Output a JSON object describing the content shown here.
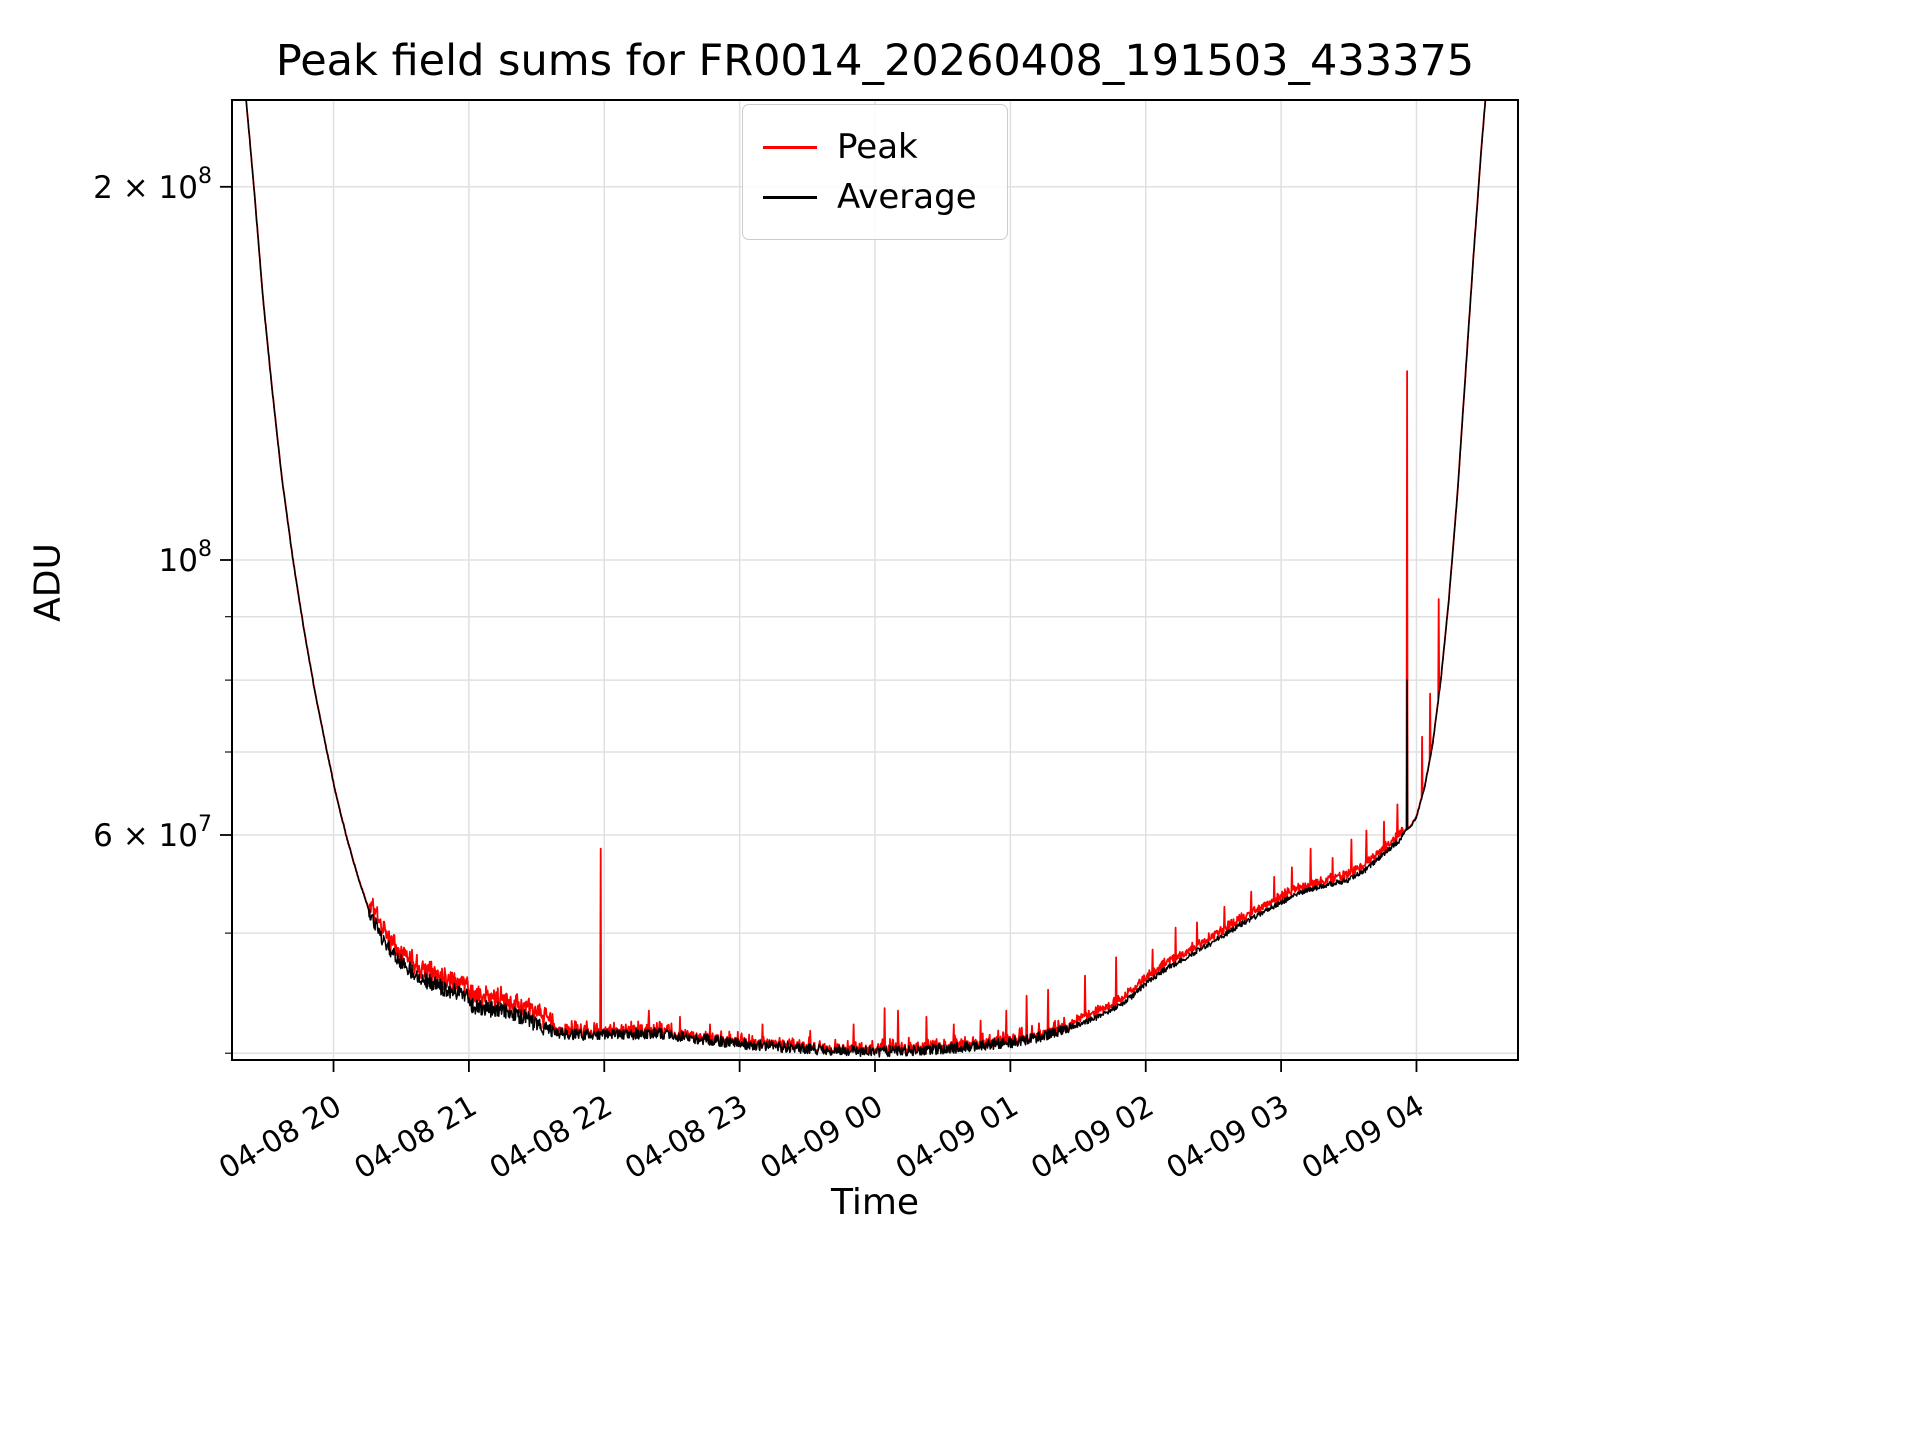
{
  "chart_data": {
    "type": "line",
    "title": "Peak field sums for FR0014_20260408_191503_433375",
    "xlabel": "Time",
    "ylabel": "ADU",
    "yscale": "log",
    "grid": true,
    "ylim": [
      39500000.0,
      235000000.0
    ],
    "xlim_hours": [
      19.25,
      28.75
    ],
    "noise_seed": 11,
    "legend_position": "upper center",
    "legend": [
      {
        "label": "Peak",
        "color": "#ff0000"
      },
      {
        "label": "Average",
        "color": "#000000"
      }
    ],
    "x_ticks": [
      {
        "hour": 20,
        "label": "04-08 20"
      },
      {
        "hour": 21,
        "label": "04-08 21"
      },
      {
        "hour": 22,
        "label": "04-08 22"
      },
      {
        "hour": 23,
        "label": "04-08 23"
      },
      {
        "hour": 24,
        "label": "04-09 00"
      },
      {
        "hour": 25,
        "label": "04-09 01"
      },
      {
        "hour": 26,
        "label": "04-09 02"
      },
      {
        "hour": 27,
        "label": "04-09 03"
      },
      {
        "hour": 28,
        "label": "04-09 04"
      }
    ],
    "y_ticks": [
      {
        "value": 60000000.0,
        "coeff": "6 × 10",
        "exp": "7"
      },
      {
        "value": 100000000.0,
        "coeff": "10",
        "exp": "8"
      },
      {
        "value": 200000000.0,
        "coeff": "2 × 10",
        "exp": "8"
      }
    ],
    "y_minor_ticks": [
      40000000.0,
      50000000.0,
      70000000.0,
      80000000.0,
      90000000.0
    ],
    "y_gridlines": [
      40000000.0,
      50000000.0,
      60000000.0,
      70000000.0,
      80000000.0,
      90000000.0,
      100000000.0,
      200000000.0
    ],
    "series": {
      "average_keypoints": [
        [
          19.25,
          260000000.0
        ],
        [
          19.33,
          250000000.0
        ],
        [
          19.37,
          225000000.0
        ],
        [
          19.42,
          195000000.0
        ],
        [
          19.48,
          162000000.0
        ],
        [
          19.55,
          136000000.0
        ],
        [
          19.62,
          116000000.0
        ],
        [
          19.7,
          100000000.0
        ],
        [
          19.78,
          88000000.0
        ],
        [
          19.86,
          78500000.0
        ],
        [
          19.94,
          71000000.0
        ],
        [
          20.02,
          64500000.0
        ],
        [
          20.1,
          59500000.0
        ],
        [
          20.18,
          55500000.0
        ],
        [
          20.26,
          52200000.0
        ],
        [
          20.34,
          50000000.0
        ],
        [
          20.42,
          48500000.0
        ],
        [
          20.52,
          47200000.0
        ],
        [
          20.62,
          46200000.0
        ],
        [
          20.72,
          45600000.0
        ],
        [
          20.85,
          45000000.0
        ],
        [
          20.98,
          44700000.0
        ],
        [
          21.03,
          43600000.0
        ],
        [
          21.18,
          43400000.0
        ],
        [
          21.32,
          43100000.0
        ],
        [
          21.42,
          42700000.0
        ],
        [
          21.52,
          42000000.0
        ],
        [
          21.65,
          41600000.0
        ],
        [
          21.85,
          41500000.0
        ],
        [
          22.1,
          41500000.0
        ],
        [
          22.4,
          41600000.0
        ],
        [
          22.6,
          41300000.0
        ],
        [
          22.85,
          41000000.0
        ],
        [
          23.1,
          40700000.0
        ],
        [
          23.4,
          40500000.0
        ],
        [
          23.7,
          40300000.0
        ],
        [
          24.0,
          40200000.0
        ],
        [
          24.35,
          40300000.0
        ],
        [
          24.7,
          40600000.0
        ],
        [
          25.0,
          40900000.0
        ],
        [
          25.25,
          41400000.0
        ],
        [
          25.45,
          42000000.0
        ],
        [
          25.65,
          42800000.0
        ],
        [
          25.85,
          44000000.0
        ],
        [
          26.0,
          45500000.0
        ],
        [
          26.15,
          46800000.0
        ],
        [
          26.3,
          47800000.0
        ],
        [
          26.5,
          49200000.0
        ],
        [
          26.7,
          50800000.0
        ],
        [
          26.9,
          52200000.0
        ],
        [
          27.05,
          53300000.0
        ],
        [
          27.2,
          54200000.0
        ],
        [
          27.35,
          54700000.0
        ],
        [
          27.5,
          55200000.0
        ],
        [
          27.62,
          56200000.0
        ],
        [
          27.72,
          57500000.0
        ],
        [
          27.8,
          58500000.0
        ],
        [
          27.88,
          59500000.0
        ],
        [
          27.92,
          60500000.0
        ],
        [
          27.96,
          61000000.0
        ],
        [
          28.0,
          62000000.0
        ],
        [
          28.06,
          65500000.0
        ],
        [
          28.12,
          71000000.0
        ],
        [
          28.18,
          80000000.0
        ],
        [
          28.24,
          93000000.0
        ],
        [
          28.3,
          112000000.0
        ],
        [
          28.36,
          140000000.0
        ],
        [
          28.42,
          175000000.0
        ],
        [
          28.48,
          215000000.0
        ],
        [
          28.53,
          250000000.0
        ],
        [
          28.6,
          260000000.0
        ],
        [
          28.75,
          260000000.0
        ]
      ],
      "average_spikes": [
        [
          27.932,
          80000000.0
        ]
      ],
      "peak_spikes": [
        [
          21.975,
          58500000.0
        ],
        [
          22.33,
          43300000.0
        ],
        [
          22.56,
          42800000.0
        ],
        [
          22.78,
          42200000.0
        ],
        [
          23.17,
          42200000.0
        ],
        [
          23.52,
          41700000.0
        ],
        [
          23.84,
          42200000.0
        ],
        [
          24.07,
          43500000.0
        ],
        [
          24.17,
          43300000.0
        ],
        [
          24.38,
          42800000.0
        ],
        [
          24.58,
          42200000.0
        ],
        [
          24.78,
          42500000.0
        ],
        [
          24.97,
          43300000.0
        ],
        [
          25.12,
          44500000.0
        ],
        [
          25.28,
          45000000.0
        ],
        [
          25.55,
          46200000.0
        ],
        [
          25.78,
          47800000.0
        ],
        [
          26.05,
          48500000.0
        ],
        [
          26.22,
          50500000.0
        ],
        [
          26.38,
          51000000.0
        ],
        [
          26.58,
          52500000.0
        ],
        [
          26.78,
          54000000.0
        ],
        [
          26.95,
          55500000.0
        ],
        [
          27.08,
          56500000.0
        ],
        [
          27.22,
          58500000.0
        ],
        [
          27.38,
          57500000.0
        ],
        [
          27.52,
          59500000.0
        ],
        [
          27.63,
          60500000.0
        ],
        [
          27.76,
          61500000.0
        ],
        [
          27.86,
          63500000.0
        ],
        [
          27.932,
          142000000.0
        ],
        [
          28.04,
          72000000.0
        ],
        [
          28.1,
          78000000.0
        ],
        [
          28.165,
          93000000.0
        ]
      ]
    }
  }
}
